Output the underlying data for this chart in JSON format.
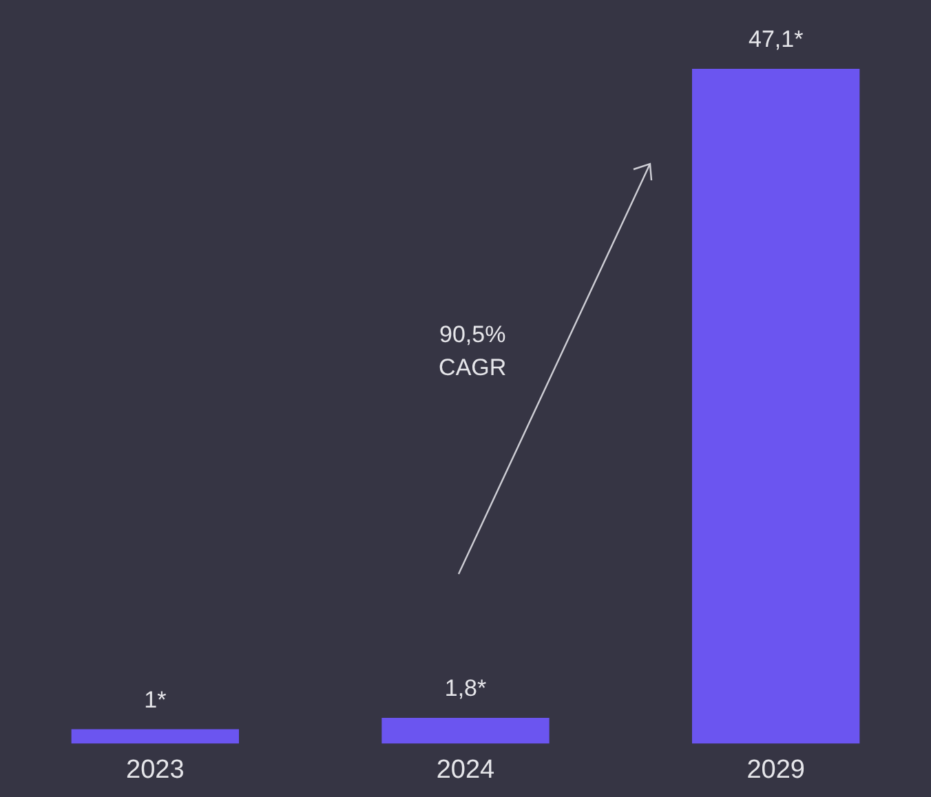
{
  "chart_data": {
    "type": "bar",
    "categories": [
      "2023",
      "2024",
      "2029"
    ],
    "values": [
      1,
      1.8,
      47.1
    ],
    "value_labels": [
      "1*",
      "1,8*",
      "47,1*"
    ],
    "color": "#6b55f0",
    "annotations": [
      "90,5%\nCAGR"
    ],
    "grid": false,
    "legend": false,
    "tick_labels": "x"
  }
}
